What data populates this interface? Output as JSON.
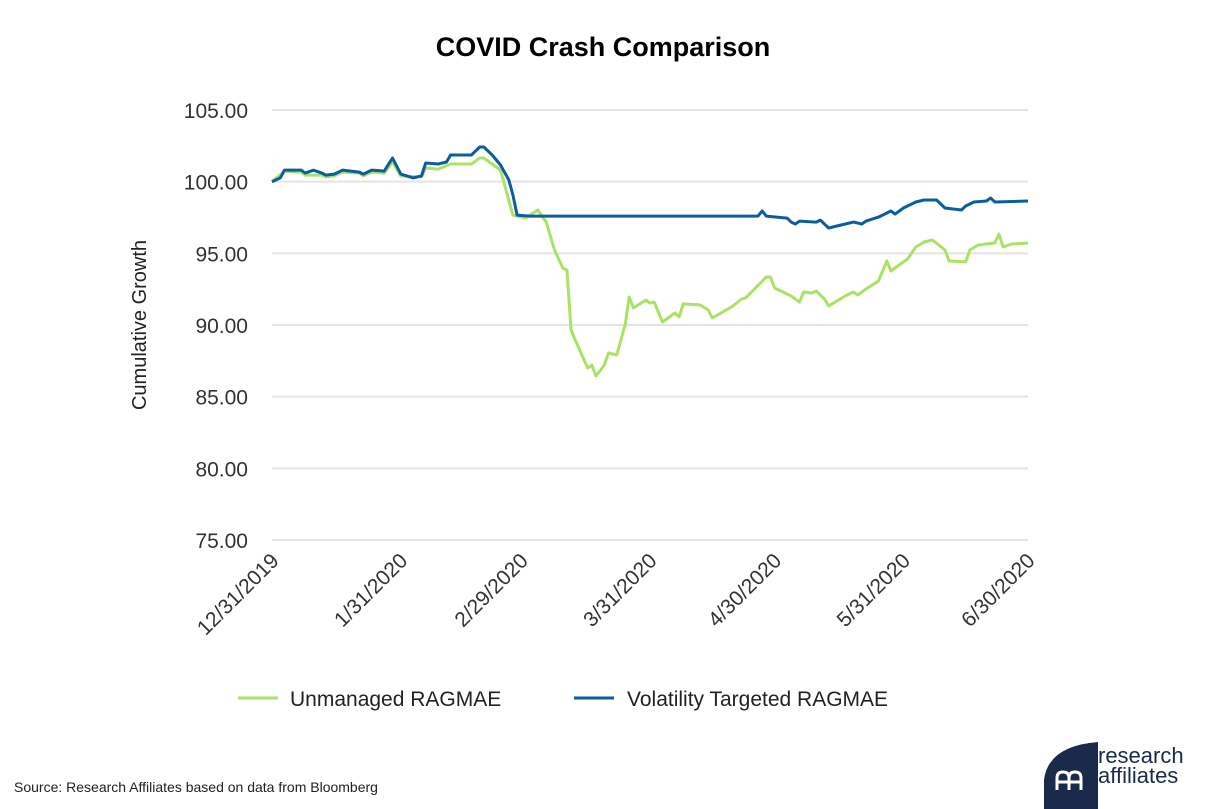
{
  "chart_data": {
    "type": "line",
    "title": "COVID Crash Comparison",
    "xlabel": "",
    "ylabel": "Cumulative Growth",
    "ylim": [
      75,
      105
    ],
    "yticks": [
      "75.00",
      "80.00",
      "85.00",
      "90.00",
      "95.00",
      "100.00",
      "105.00"
    ],
    "xticks": [
      "12/31/2019",
      "1/31/2020",
      "2/29/2020",
      "3/31/2020",
      "4/30/2020",
      "5/31/2020",
      "6/30/2020"
    ],
    "grid": "horizontal",
    "legend_position": "bottom",
    "series": [
      {
        "name": "Unmanaged RAGMAE",
        "color": "#a9e265",
        "points": [
          [
            "2019-12-31",
            100.0
          ],
          [
            "2020-01-03",
            100.74
          ],
          [
            "2020-01-07",
            100.67
          ],
          [
            "2020-01-08",
            100.46
          ],
          [
            "2020-01-12",
            100.46
          ],
          [
            "2020-01-13",
            100.33
          ],
          [
            "2020-01-15",
            100.4
          ],
          [
            "2020-01-17",
            100.67
          ],
          [
            "2020-01-21",
            100.6
          ],
          [
            "2020-01-22",
            100.4
          ],
          [
            "2020-01-24",
            100.67
          ],
          [
            "2020-01-27",
            100.6
          ],
          [
            "2020-01-29",
            101.37
          ],
          [
            "2020-01-31",
            100.4
          ],
          [
            "2020-02-05",
            100.33
          ],
          [
            "2020-02-06",
            100.95
          ],
          [
            "2020-02-09",
            100.88
          ],
          [
            "2020-02-12",
            101.23
          ],
          [
            "2020-02-17",
            101.23
          ],
          [
            "2020-02-19",
            101.65
          ],
          [
            "2020-02-20",
            101.65
          ],
          [
            "2020-02-24",
            100.81
          ],
          [
            "2020-02-27",
            97.67
          ],
          [
            "2020-03-01",
            97.46
          ],
          [
            "2020-03-04",
            98.02
          ],
          [
            "2020-03-06",
            97.18
          ],
          [
            "2020-03-08",
            95.23
          ],
          [
            "2020-03-10",
            93.98
          ],
          [
            "2020-03-11",
            93.84
          ],
          [
            "2020-03-12",
            89.65
          ],
          [
            "2020-03-13",
            88.95
          ],
          [
            "2020-03-16",
            87.0
          ],
          [
            "2020-03-17",
            87.21
          ],
          [
            "2020-03-18",
            86.44
          ],
          [
            "2020-03-20",
            87.21
          ],
          [
            "2020-03-21",
            88.05
          ],
          [
            "2020-03-23",
            87.91
          ],
          [
            "2020-03-24",
            88.95
          ],
          [
            "2020-03-25",
            90.0
          ],
          [
            "2020-03-26",
            91.95
          ],
          [
            "2020-03-27",
            91.19
          ],
          [
            "2020-03-30",
            91.74
          ],
          [
            "2020-03-31",
            91.53
          ],
          [
            "2020-04-01",
            91.6
          ],
          [
            "2020-04-02",
            90.91
          ],
          [
            "2020-04-03",
            90.21
          ],
          [
            "2020-04-06",
            90.84
          ],
          [
            "2020-04-07",
            90.56
          ],
          [
            "2020-04-08",
            91.47
          ],
          [
            "2020-04-12",
            91.4
          ],
          [
            "2020-04-14",
            91.05
          ],
          [
            "2020-04-15",
            90.49
          ],
          [
            "2020-04-20",
            91.33
          ],
          [
            "2020-04-22",
            91.81
          ],
          [
            "2020-04-23",
            91.88
          ],
          [
            "2020-04-28",
            93.35
          ],
          [
            "2020-04-29",
            93.35
          ],
          [
            "2020-04-30",
            92.58
          ],
          [
            "2020-05-01",
            92.44
          ],
          [
            "2020-05-04",
            92.02
          ],
          [
            "2020-05-06",
            91.6
          ],
          [
            "2020-05-07",
            92.3
          ],
          [
            "2020-05-09",
            92.23
          ],
          [
            "2020-05-10",
            92.37
          ],
          [
            "2020-05-12",
            91.81
          ],
          [
            "2020-05-13",
            91.33
          ],
          [
            "2020-05-17",
            92.02
          ],
          [
            "2020-05-19",
            92.3
          ],
          [
            "2020-05-20",
            92.09
          ],
          [
            "2020-05-22",
            92.51
          ],
          [
            "2020-05-25",
            93.07
          ],
          [
            "2020-05-27",
            94.47
          ],
          [
            "2020-05-28",
            93.77
          ],
          [
            "2020-05-31",
            94.4
          ],
          [
            "2020-06-01",
            94.6
          ],
          [
            "2020-06-03",
            95.44
          ],
          [
            "2020-06-05",
            95.79
          ],
          [
            "2020-06-07",
            95.93
          ],
          [
            "2020-06-10",
            95.23
          ],
          [
            "2020-06-11",
            94.47
          ],
          [
            "2020-06-15",
            94.4
          ],
          [
            "2020-06-16",
            95.23
          ],
          [
            "2020-06-18",
            95.58
          ],
          [
            "2020-06-22",
            95.72
          ],
          [
            "2020-06-23",
            96.35
          ],
          [
            "2020-06-24",
            95.44
          ],
          [
            "2020-06-26",
            95.65
          ],
          [
            "2020-06-30",
            95.72
          ]
        ]
      },
      {
        "name": "Volatility Targeted RAGMAE",
        "color": "#0b5e9e",
        "points": [
          [
            "2019-12-31",
            100.0
          ],
          [
            "2020-01-02",
            100.26
          ],
          [
            "2020-01-03",
            100.81
          ],
          [
            "2020-01-07",
            100.81
          ],
          [
            "2020-01-08",
            100.6
          ],
          [
            "2020-01-10",
            100.8
          ],
          [
            "2020-01-12",
            100.6
          ],
          [
            "2020-01-13",
            100.46
          ],
          [
            "2020-01-15",
            100.53
          ],
          [
            "2020-01-17",
            100.81
          ],
          [
            "2020-01-21",
            100.67
          ],
          [
            "2020-01-22",
            100.53
          ],
          [
            "2020-01-24",
            100.81
          ],
          [
            "2020-01-27",
            100.74
          ],
          [
            "2020-01-29",
            101.65
          ],
          [
            "2020-01-31",
            100.53
          ],
          [
            "2020-02-03",
            100.26
          ],
          [
            "2020-02-05",
            100.4
          ],
          [
            "2020-02-06",
            101.3
          ],
          [
            "2020-02-09",
            101.23
          ],
          [
            "2020-02-11",
            101.37
          ],
          [
            "2020-02-12",
            101.86
          ],
          [
            "2020-02-14",
            101.86
          ],
          [
            "2020-02-17",
            101.86
          ],
          [
            "2020-02-19",
            102.42
          ],
          [
            "2020-02-20",
            102.42
          ],
          [
            "2020-02-22",
            101.86
          ],
          [
            "2020-02-24",
            101.16
          ],
          [
            "2020-02-26",
            100.12
          ],
          [
            "2020-02-27",
            99.07
          ],
          [
            "2020-02-28",
            97.67
          ],
          [
            "2020-03-02",
            97.6
          ],
          [
            "2020-04-26",
            97.6
          ],
          [
            "2020-04-27",
            97.95
          ],
          [
            "2020-04-28",
            97.6
          ],
          [
            "2020-05-03",
            97.46
          ],
          [
            "2020-05-04",
            97.18
          ],
          [
            "2020-05-05",
            97.05
          ],
          [
            "2020-05-06",
            97.25
          ],
          [
            "2020-05-10",
            97.18
          ],
          [
            "2020-05-11",
            97.32
          ],
          [
            "2020-05-13",
            96.77
          ],
          [
            "2020-05-16",
            96.98
          ],
          [
            "2020-05-19",
            97.18
          ],
          [
            "2020-05-21",
            97.05
          ],
          [
            "2020-05-22",
            97.25
          ],
          [
            "2020-05-25",
            97.53
          ],
          [
            "2020-05-28",
            97.95
          ],
          [
            "2020-05-29",
            97.74
          ],
          [
            "2020-05-31",
            98.16
          ],
          [
            "2020-06-03",
            98.58
          ],
          [
            "2020-06-05",
            98.72
          ],
          [
            "2020-06-08",
            98.72
          ],
          [
            "2020-06-10",
            98.16
          ],
          [
            "2020-06-14",
            98.02
          ],
          [
            "2020-06-15",
            98.3
          ],
          [
            "2020-06-17",
            98.58
          ],
          [
            "2020-06-20",
            98.65
          ],
          [
            "2020-06-21",
            98.86
          ],
          [
            "2020-06-22",
            98.58
          ],
          [
            "2020-06-30",
            98.65
          ]
        ]
      }
    ]
  },
  "source": "Source: Research Affiliates based on data from Bloomberg",
  "logo": {
    "line1": "research",
    "line2": "affiliates",
    "color": "#1b2a4a"
  }
}
